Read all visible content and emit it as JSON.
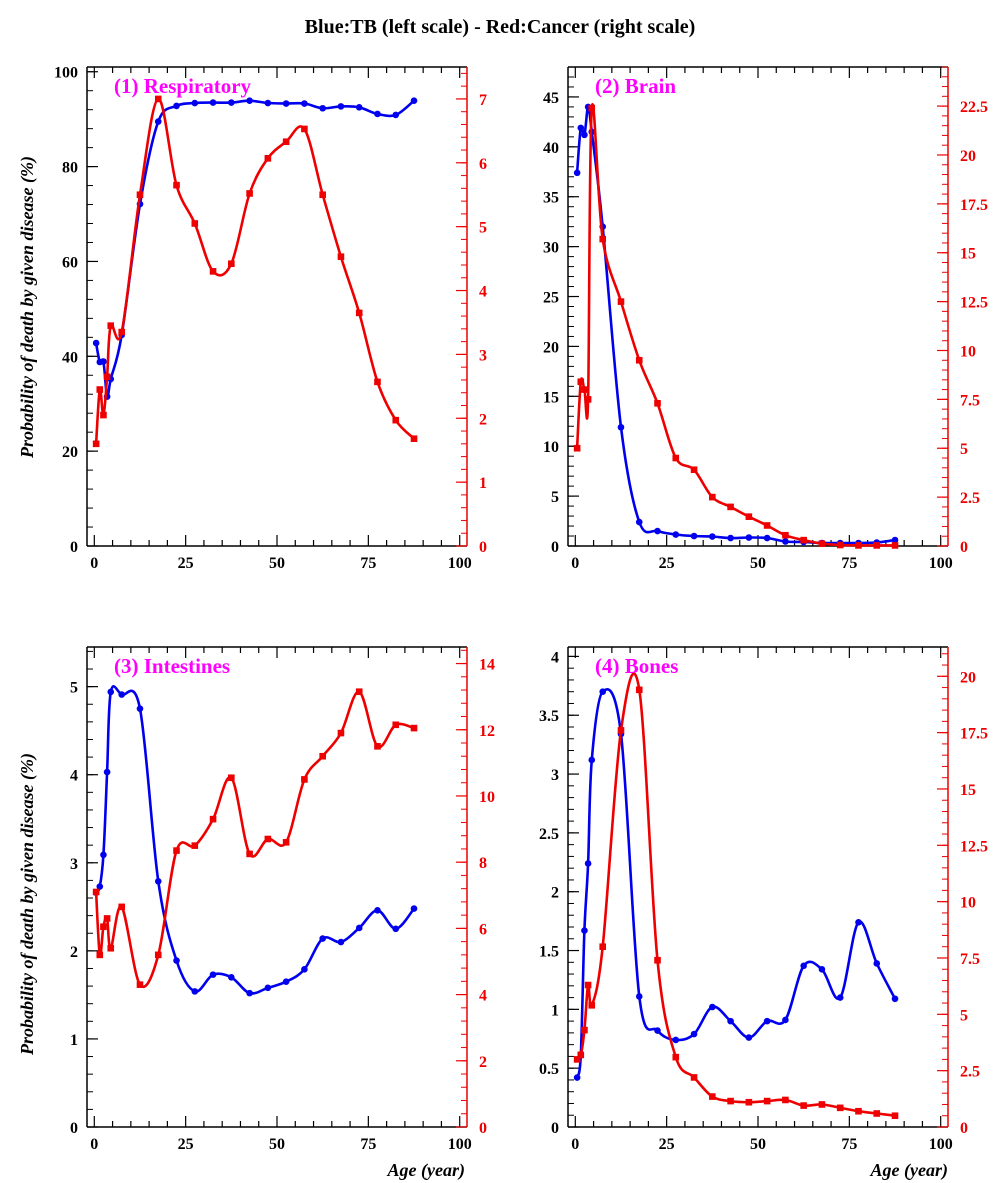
{
  "figure_title": "Blue:TB (left scale) - Red:Cancer (right scale)",
  "ylabel": "Probability of death by given disease (%)",
  "xlabel": "Age (year)",
  "colors": {
    "tb": "#0000ee",
    "cancer": "#ee0000",
    "panel_title": "#ff00ff",
    "axis": "#000000"
  },
  "chart_data": [
    {
      "type": "line",
      "title": "(1) Respiratory",
      "xlim": [
        -2,
        102
      ],
      "xticks": [
        0,
        25,
        50,
        75,
        100
      ],
      "ylim": [
        0,
        101
      ],
      "yticks": [
        0,
        20,
        40,
        60,
        80,
        100
      ],
      "y2lim": [
        0,
        7.5
      ],
      "y2ticks": [
        0,
        1,
        2,
        3,
        4,
        5,
        6,
        7
      ],
      "series": [
        {
          "axis": "left",
          "x": [
            0.5,
            1.5,
            2.5,
            3.5,
            4.5,
            7.5,
            12.5,
            17.5,
            22.5,
            27.5,
            32.5,
            37.5,
            42.5,
            47.5,
            52.5,
            57.5,
            62.5,
            67.5,
            72.5,
            77.5,
            82.5,
            87.5
          ],
          "values": [
            42.8,
            38.8,
            38.9,
            31.5,
            35.2,
            44.5,
            72.1,
            89.5,
            92.8,
            93.4,
            93.5,
            93.5,
            93.9,
            93.4,
            93.3,
            93.3,
            92.3,
            92.7,
            92.5,
            91.1,
            90.9,
            93.9
          ]
        },
        {
          "axis": "right",
          "x": [
            0.5,
            1.5,
            2.5,
            3.5,
            4.5,
            7.5,
            12.5,
            17.5,
            22.5,
            27.5,
            32.5,
            37.5,
            42.5,
            47.5,
            52.5,
            57.5,
            62.5,
            67.5,
            72.5,
            77.5,
            82.5,
            87.5
          ],
          "values": [
            1.6,
            2.45,
            2.05,
            2.65,
            3.45,
            3.35,
            5.5,
            7.0,
            5.65,
            5.05,
            4.3,
            4.42,
            5.52,
            6.07,
            6.33,
            6.53,
            5.5,
            4.53,
            3.65,
            2.57,
            1.97,
            1.68
          ]
        }
      ]
    },
    {
      "type": "line",
      "title": "(2) Brain",
      "xlim": [
        -2,
        102
      ],
      "xticks": [
        0,
        25,
        50,
        75,
        100
      ],
      "ylim": [
        0,
        48
      ],
      "yticks": [
        0,
        5,
        10,
        15,
        20,
        25,
        30,
        35,
        40,
        45
      ],
      "y2lim": [
        0,
        24.5
      ],
      "y2ticks": [
        0,
        2.5,
        5,
        7.5,
        10,
        12.5,
        15,
        17.5,
        20,
        22.5
      ],
      "series": [
        {
          "axis": "left",
          "x": [
            0.5,
            1.5,
            2.5,
            3.5,
            4.5,
            7.5,
            12.5,
            17.5,
            22.5,
            27.5,
            32.5,
            37.5,
            42.5,
            47.5,
            52.5,
            57.5,
            62.5,
            67.5,
            72.5,
            77.5,
            82.5,
            87.5
          ],
          "values": [
            37.4,
            41.9,
            41.2,
            44.0,
            41.5,
            32.0,
            11.9,
            2.4,
            1.5,
            1.15,
            1.0,
            0.95,
            0.8,
            0.85,
            0.8,
            0.45,
            0.4,
            0.3,
            0.3,
            0.3,
            0.35,
            0.6
          ]
        },
        {
          "axis": "right",
          "x": [
            0.5,
            1.5,
            2.5,
            3.5,
            4.5,
            7.5,
            12.5,
            17.5,
            22.5,
            27.5,
            32.5,
            37.5,
            42.5,
            47.5,
            52.5,
            57.5,
            62.5,
            67.5,
            72.5,
            77.5,
            82.5,
            87.5
          ],
          "values": [
            5.0,
            8.4,
            8.0,
            7.5,
            22.4,
            15.7,
            12.5,
            9.5,
            7.3,
            4.5,
            3.9,
            2.5,
            2.0,
            1.5,
            1.05,
            0.55,
            0.3,
            0.12,
            0.05,
            0.03,
            0.03,
            0.03
          ]
        }
      ]
    },
    {
      "type": "line",
      "title": "(3) Intestines",
      "xlim": [
        -2,
        102
      ],
      "xticks": [
        0,
        25,
        50,
        75,
        100
      ],
      "ylim": [
        0,
        5.45
      ],
      "yticks": [
        0,
        1,
        2,
        3,
        4,
        5
      ],
      "y2lim": [
        0,
        14.5
      ],
      "y2ticks": [
        0,
        2,
        4,
        6,
        8,
        10,
        12,
        14
      ],
      "series": [
        {
          "axis": "left",
          "x": [
            0.5,
            1.5,
            2.5,
            3.5,
            4.5,
            7.5,
            12.5,
            17.5,
            22.5,
            27.5,
            32.5,
            37.5,
            42.5,
            47.5,
            52.5,
            57.5,
            62.5,
            67.5,
            72.5,
            77.5,
            82.5,
            87.5
          ],
          "values": [
            2.66,
            2.73,
            3.09,
            4.03,
            4.94,
            4.91,
            4.75,
            2.79,
            1.89,
            1.54,
            1.73,
            1.7,
            1.52,
            1.58,
            1.65,
            1.79,
            2.14,
            2.1,
            2.26,
            2.46,
            2.25,
            2.48
          ]
        },
        {
          "axis": "right",
          "x": [
            0.5,
            1.5,
            2.5,
            3.5,
            4.5,
            7.5,
            12.5,
            17.5,
            22.5,
            27.5,
            32.5,
            37.5,
            42.5,
            47.5,
            52.5,
            57.5,
            62.5,
            67.5,
            72.5,
            77.5,
            82.5,
            87.5
          ],
          "values": [
            7.1,
            5.2,
            6.05,
            6.3,
            5.4,
            6.65,
            4.3,
            5.2,
            8.35,
            8.5,
            9.3,
            10.55,
            8.25,
            8.7,
            8.6,
            10.5,
            11.2,
            11.9,
            13.15,
            11.5,
            12.15,
            12.05
          ]
        }
      ]
    },
    {
      "type": "line",
      "title": "(4) Bones",
      "xlim": [
        -2,
        102
      ],
      "xticks": [
        0,
        25,
        50,
        75,
        100
      ],
      "ylim": [
        0,
        4.08
      ],
      "yticks": [
        0,
        0.5,
        1,
        1.5,
        2,
        2.5,
        3,
        3.5,
        4
      ],
      "y2lim": [
        0,
        21.3
      ],
      "y2ticks": [
        0,
        2.5,
        5,
        7.5,
        10,
        12.5,
        15,
        17.5,
        20
      ],
      "series": [
        {
          "axis": "left",
          "x": [
            0.5,
            1.5,
            2.5,
            3.5,
            4.5,
            7.5,
            12.5,
            17.5,
            22.5,
            27.5,
            32.5,
            37.5,
            42.5,
            47.5,
            52.5,
            57.5,
            62.5,
            67.5,
            72.5,
            77.5,
            82.5,
            87.5
          ],
          "values": [
            0.42,
            0.61,
            1.67,
            2.24,
            3.12,
            3.7,
            3.34,
            1.11,
            0.82,
            0.74,
            0.79,
            1.02,
            0.9,
            0.76,
            0.9,
            0.91,
            1.37,
            1.34,
            1.1,
            1.74,
            1.39,
            1.09
          ]
        },
        {
          "axis": "right",
          "x": [
            0.5,
            1.5,
            2.5,
            3.5,
            4.5,
            7.5,
            12.5,
            17.5,
            22.5,
            27.5,
            32.5,
            37.5,
            42.5,
            47.5,
            52.5,
            57.5,
            62.5,
            67.5,
            72.5,
            77.5,
            82.5,
            87.5
          ],
          "values": [
            3.0,
            3.2,
            4.3,
            6.3,
            5.4,
            8.0,
            17.6,
            19.4,
            7.4,
            3.1,
            2.2,
            1.35,
            1.15,
            1.1,
            1.15,
            1.2,
            0.95,
            1.0,
            0.85,
            0.7,
            0.6,
            0.5
          ]
        }
      ]
    }
  ]
}
